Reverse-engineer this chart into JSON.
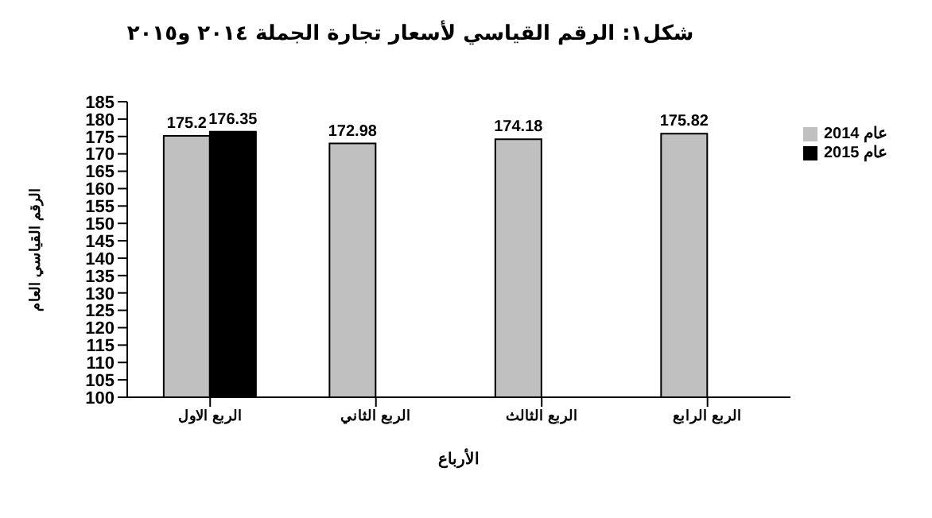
{
  "chart_data": {
    "type": "bar",
    "title": "شكل١: الرقم القياسي لأسعار تجارة الجملة ٢٠١٤ و٢٠١٥",
    "xlabel": "الأرباع",
    "ylabel": "الرقم القياسي العام",
    "categories": [
      "الربع الاول",
      "الربع الثاني",
      "الربع الثالث",
      "الربع الرابع"
    ],
    "series": [
      {
        "name": "عام 2014",
        "color": "#c0c0c0",
        "values": [
          175.2,
          172.98,
          174.18,
          175.82
        ]
      },
      {
        "name": "عام 2015",
        "color": "#000000",
        "values": [
          176.35,
          null,
          null,
          null
        ]
      }
    ],
    "ylim": [
      100,
      185
    ],
    "yticks": [
      100,
      105,
      110,
      115,
      120,
      125,
      130,
      135,
      140,
      145,
      150,
      155,
      160,
      165,
      170,
      175,
      180,
      185
    ],
    "data_labels": true,
    "grid": false,
    "legend": "right"
  }
}
